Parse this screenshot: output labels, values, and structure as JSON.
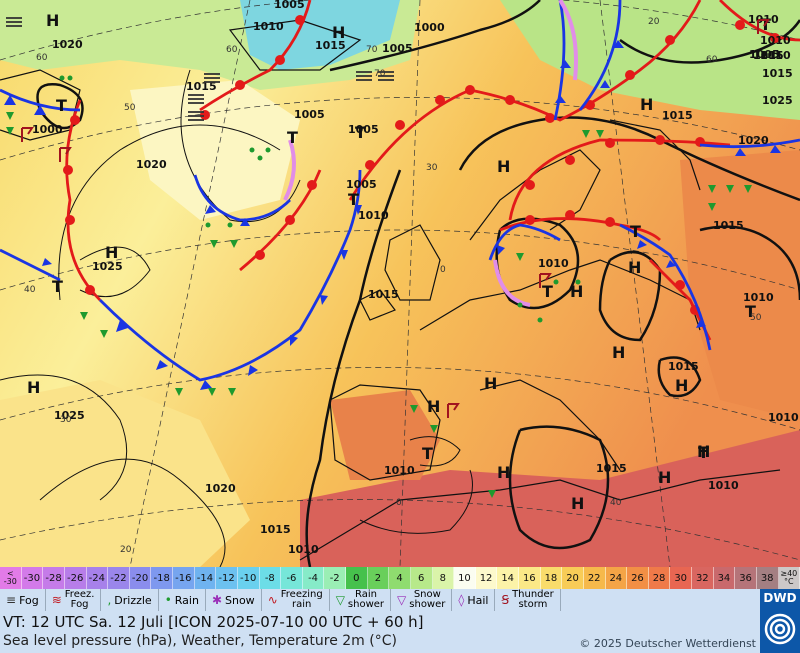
{
  "map": {
    "isobars": [
      "1020",
      "1010",
      "1005",
      "1015",
      "1005",
      "1000",
      "1010",
      "1015",
      "1000",
      "1005",
      "1020",
      "1015",
      "1005",
      "1010",
      "1005",
      "1020",
      "1025",
      "1015",
      "1015",
      "1025",
      "1025",
      "1010",
      "1015",
      "1010",
      "1015",
      "1010",
      "1010",
      "1005",
      "1015",
      "1010",
      "1010",
      "1020",
      "1015",
      "1015",
      "1010",
      "1010"
    ],
    "pressure_centers": [
      "H",
      "H",
      "T",
      "T",
      "T",
      "T",
      "T",
      "H",
      "H",
      "H",
      "H",
      "T",
      "H",
      "H",
      "T",
      "H",
      "T",
      "T",
      "H",
      "H",
      "H",
      "H",
      "H",
      "H",
      "H",
      "T",
      "T"
    ],
    "lat_labels": [
      "60",
      "60",
      "50",
      "40",
      "30",
      "20",
      "0",
      "70",
      "60",
      "50",
      "40",
      "30",
      "20",
      "0",
      "70"
    ]
  },
  "scale": {
    "cells": [
      {
        "label": "<\n-30",
        "color": "#e27be7"
      },
      {
        "label": "-30",
        "color": "#d37ae9"
      },
      {
        "label": "-28",
        "color": "#c57be9"
      },
      {
        "label": "-26",
        "color": "#b77de9"
      },
      {
        "label": "-24",
        "color": "#a781ea"
      },
      {
        "label": "-22",
        "color": "#9a86eb"
      },
      {
        "label": "-20",
        "color": "#8a8ded"
      },
      {
        "label": "-18",
        "color": "#7e98ef"
      },
      {
        "label": "-16",
        "color": "#76a5ef"
      },
      {
        "label": "-14",
        "color": "#6fb3f0"
      },
      {
        "label": "-12",
        "color": "#6cc1f0"
      },
      {
        "label": "-10",
        "color": "#6ad0ee"
      },
      {
        "label": "-8",
        "color": "#6cdde7"
      },
      {
        "label": "-6",
        "color": "#76e6d9"
      },
      {
        "label": "-4",
        "color": "#86ebc8"
      },
      {
        "label": "-2",
        "color": "#9aeeb4"
      },
      {
        "label": "0",
        "color": "#46c14c"
      },
      {
        "label": "2",
        "color": "#69cf5b"
      },
      {
        "label": "4",
        "color": "#8fdc6f"
      },
      {
        "label": "6",
        "color": "#b7e98a"
      },
      {
        "label": "8",
        "color": "#daf4a9"
      },
      {
        "label": "10",
        "color": "#fbfdf1"
      },
      {
        "label": "12",
        "color": "#fdf9cc"
      },
      {
        "label": "14",
        "color": "#fcf3a8"
      },
      {
        "label": "16",
        "color": "#fbe887"
      },
      {
        "label": "18",
        "color": "#f9dc6b"
      },
      {
        "label": "20",
        "color": "#f8cc57"
      },
      {
        "label": "22",
        "color": "#f6b94b"
      },
      {
        "label": "24",
        "color": "#f4a446"
      },
      {
        "label": "26",
        "color": "#f28f45"
      },
      {
        "label": "28",
        "color": "#ef7a49"
      },
      {
        "label": "30",
        "color": "#e86652"
      },
      {
        "label": "32",
        "color": "#d96660"
      },
      {
        "label": "34",
        "color": "#c9696c"
      },
      {
        "label": "36",
        "color": "#b57479"
      },
      {
        "label": "38",
        "color": "#a47f82"
      },
      {
        "label": "≥40\n°C",
        "color": "#ccc8c8"
      }
    ]
  },
  "legend": {
    "items": [
      {
        "label": "Fog",
        "icon": "fog-icon"
      },
      {
        "label": "Freez.\nFog",
        "icon": "freezing-fog-icon"
      },
      {
        "label": "Drizzle",
        "icon": "drizzle-icon"
      },
      {
        "label": "Rain",
        "icon": "rain-icon"
      },
      {
        "label": "Snow",
        "icon": "snow-icon"
      },
      {
        "label": "Freezing\nrain",
        "icon": "freezing-rain-icon"
      },
      {
        "label": "Rain\nshower",
        "icon": "rain-shower-icon"
      },
      {
        "label": "Snow\nshower",
        "icon": "snow-shower-icon"
      },
      {
        "label": "Hail",
        "icon": "hail-icon"
      },
      {
        "label": "Thunder\nstorm",
        "icon": "thunderstorm-icon"
      }
    ]
  },
  "info": {
    "vt": "VT: 12 UTC Sa.  12 Juli [ICON 2025-07-10  00 UTC + 60 h]",
    "subtitle": "Sea level pressure (hPa), Weather, Temperature 2m (°C)",
    "copyright": "© 2025 Deutscher Wetterdienst",
    "logo": "DWD"
  }
}
